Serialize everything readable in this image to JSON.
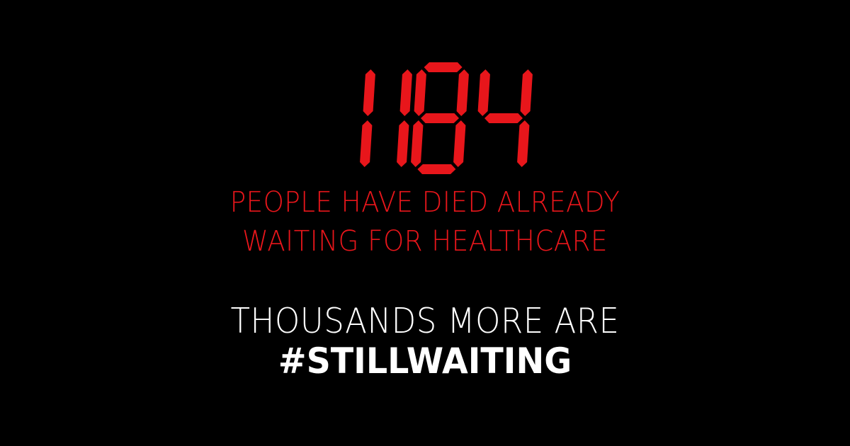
{
  "counter": {
    "value": "1184",
    "color": "#e8161b"
  },
  "caption": {
    "line1": "PEOPLE HAVE DIED ALREADY",
    "line2": "WAITING FOR HEALTHCARE",
    "color": "#e8161b"
  },
  "tagline": {
    "line1": "THOUSANDS MORE ARE",
    "line2": "#STILLWAITING",
    "color": "#ffffff"
  }
}
